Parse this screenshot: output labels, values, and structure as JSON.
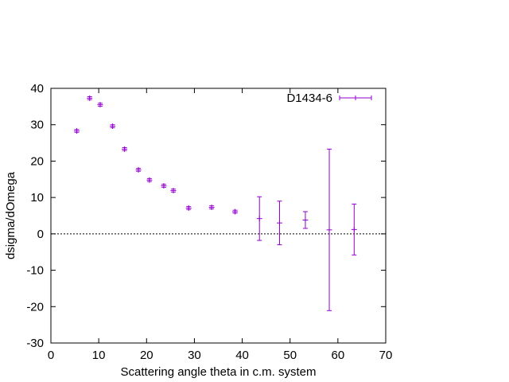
{
  "chart_data": {
    "type": "scatter",
    "xlabel": "Scattering angle theta in c.m. system",
    "ylabel": "dsigma/dOmega",
    "xlim": [
      0,
      70
    ],
    "ylim": [
      -30,
      40
    ],
    "xticks": [
      0,
      10,
      20,
      30,
      40,
      50,
      60,
      70
    ],
    "yticks": [
      -30,
      -20,
      -10,
      0,
      10,
      20,
      30,
      40
    ],
    "grid": false,
    "zero_line": true,
    "legend_position": "top-right",
    "series": [
      {
        "name": "D1434-6",
        "color": "#9400d3",
        "style": "errorbars",
        "points": [
          {
            "x": 5.4,
            "y": 28.3,
            "err": 0.4
          },
          {
            "x": 8.1,
            "y": 37.3,
            "err": 0.4
          },
          {
            "x": 10.3,
            "y": 35.5,
            "err": 0.4
          },
          {
            "x": 12.9,
            "y": 29.6,
            "err": 0.4
          },
          {
            "x": 15.4,
            "y": 23.3,
            "err": 0.4
          },
          {
            "x": 18.3,
            "y": 17.6,
            "err": 0.4
          },
          {
            "x": 20.6,
            "y": 14.8,
            "err": 0.4
          },
          {
            "x": 23.6,
            "y": 13.2,
            "err": 0.4
          },
          {
            "x": 25.6,
            "y": 11.9,
            "err": 0.4
          },
          {
            "x": 28.8,
            "y": 7.1,
            "err": 0.4
          },
          {
            "x": 33.6,
            "y": 7.3,
            "err": 0.4
          },
          {
            "x": 38.5,
            "y": 6.1,
            "err": 0.4
          },
          {
            "x": 43.6,
            "y": 4.2,
            "err": 6.0
          },
          {
            "x": 47.8,
            "y": 3.0,
            "err": 6.0
          },
          {
            "x": 53.2,
            "y": 3.8,
            "err": 2.3
          },
          {
            "x": 58.2,
            "y": 1.1,
            "err": 22.2
          },
          {
            "x": 63.4,
            "y": 1.2,
            "err": 7.0
          }
        ]
      }
    ]
  }
}
